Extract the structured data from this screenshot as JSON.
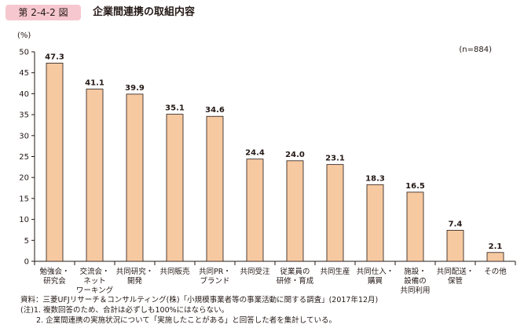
{
  "figure": {
    "number": "第 2-4-2 図",
    "title": "企業間連携の取組内容"
  },
  "chart_data": {
    "type": "bar",
    "title": "企業間連携の取組内容",
    "ylabel": "(%)",
    "xlabel": "",
    "ylim": [
      0,
      50
    ],
    "yticks": [
      0,
      5,
      10,
      15,
      20,
      25,
      30,
      35,
      40,
      45,
      50
    ],
    "grid": false,
    "sample_note": "(n=884)",
    "categories": [
      [
        "勉強会・",
        "研究会"
      ],
      [
        "交流会・",
        "ネット",
        "ワーキング"
      ],
      [
        "共同研究・",
        "開発"
      ],
      [
        "共同販売"
      ],
      [
        "共同PR・",
        "ブランド"
      ],
      [
        "共同受注"
      ],
      [
        "従業員の",
        "研修・育成"
      ],
      [
        "共同生産"
      ],
      [
        "共同仕入・",
        "購買"
      ],
      [
        "施設・",
        "設備の",
        "共同利用"
      ],
      [
        "共同配送・",
        "保管"
      ],
      [
        "その他"
      ]
    ],
    "values": [
      47.3,
      41.1,
      39.9,
      35.1,
      34.6,
      24.4,
      24.0,
      23.1,
      18.3,
      16.5,
      7.4,
      2.1
    ],
    "value_labels": [
      "47.3",
      "41.1",
      "39.9",
      "35.1",
      "34.6",
      "24.4",
      "24.0",
      "23.1",
      "18.3",
      "16.5",
      "7.4",
      "2.1"
    ],
    "bar_color": "#f7c9a1",
    "bar_edge_color": "#231815"
  },
  "notes": {
    "source": "資料：三菱UFJリサーチ＆コンサルティング(株)「小規模事業者等の事業活動に関する調査」(2017年12月)",
    "note1": "(注)1. 複数回答のため、合計は必ずしも100%にはならない。",
    "note2": "2. 企業間連携の実施状況について「実施したことがある」と回答した者を集計している。"
  }
}
